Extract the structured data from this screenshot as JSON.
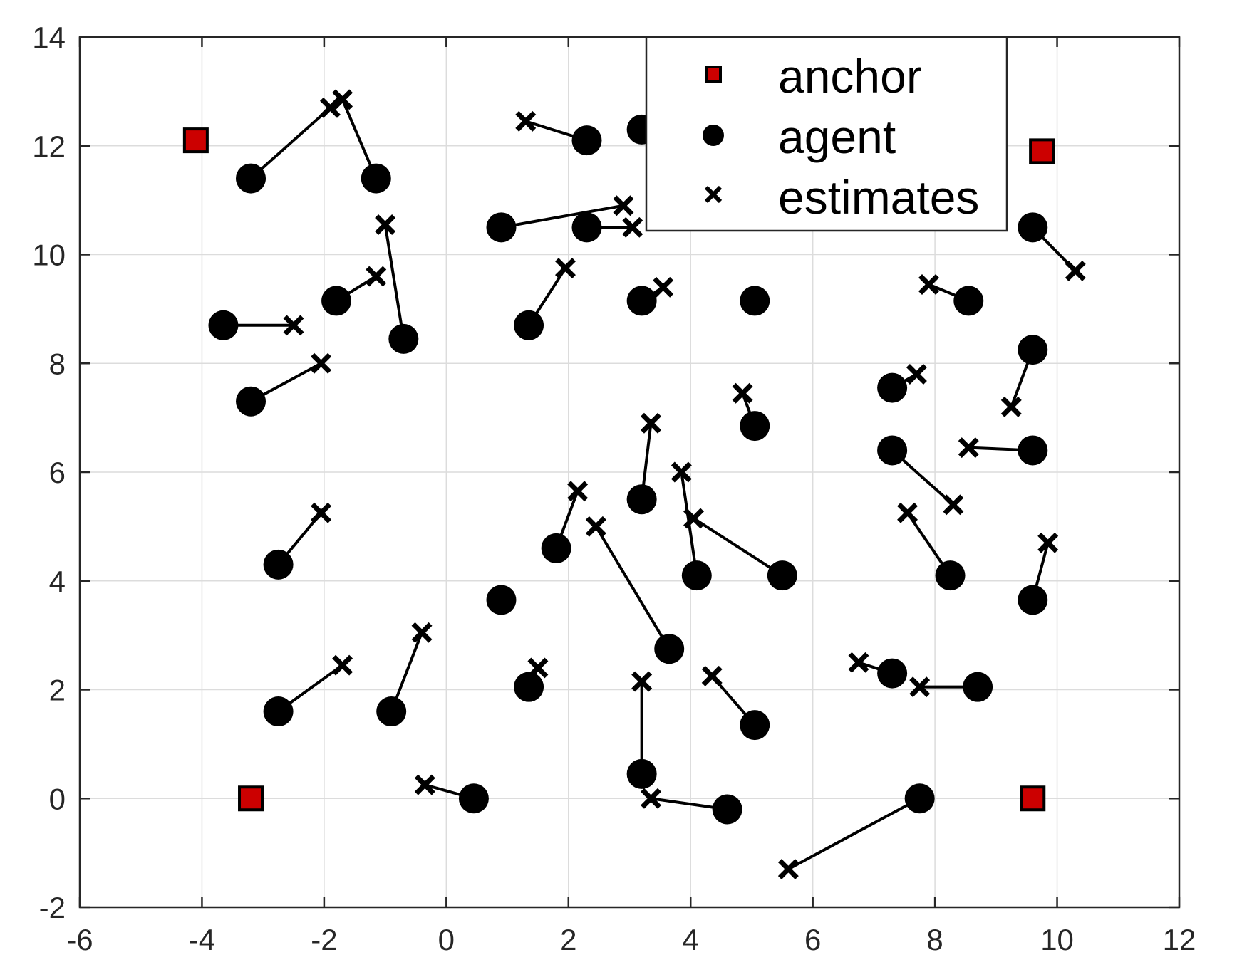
{
  "chart_data": {
    "type": "scatter",
    "title": "",
    "xlabel": "",
    "ylabel": "",
    "xlim": [
      -6,
      12
    ],
    "ylim": [
      -2,
      14
    ],
    "xticks": [
      "-6",
      "-4",
      "-2",
      "0",
      "2",
      "4",
      "6",
      "8",
      "10",
      "12"
    ],
    "yticks": [
      "-2",
      "0",
      "2",
      "4",
      "6",
      "8",
      "10",
      "12",
      "14"
    ],
    "grid": true,
    "legend": {
      "placement": "top-right (inside)",
      "entries": [
        "anchor",
        "agent",
        "estimates"
      ]
    },
    "colors": {
      "anchor": "#cc0000",
      "agent": "#000000",
      "estimates": "#000000"
    },
    "anchors": [
      {
        "x": -4.1,
        "y": 12.1
      },
      {
        "x": 9.75,
        "y": 11.9
      },
      {
        "x": -3.2,
        "y": 0.0
      },
      {
        "x": 9.6,
        "y": 0.0
      }
    ],
    "pairs": [
      {
        "agent": [
          -3.2,
          11.4
        ],
        "estimate": [
          -1.9,
          12.7
        ]
      },
      {
        "agent": [
          -1.15,
          11.4
        ],
        "estimate": [
          -1.7,
          12.85
        ]
      },
      {
        "agent": [
          2.3,
          12.1
        ],
        "estimate": [
          1.3,
          12.45
        ]
      },
      {
        "agent": [
          3.2,
          12.3
        ],
        "estimate": null
      },
      {
        "agent": [
          0.9,
          10.5
        ],
        "estimate": [
          2.9,
          10.9
        ]
      },
      {
        "agent": [
          2.3,
          10.5
        ],
        "estimate": [
          3.05,
          10.5
        ]
      },
      {
        "agent": [
          9.6,
          10.5
        ],
        "estimate": [
          10.3,
          9.7
        ]
      },
      {
        "agent": [
          -1.8,
          9.15
        ],
        "estimate": [
          -1.15,
          9.6
        ]
      },
      {
        "agent": [
          -0.7,
          8.45
        ],
        "estimate": [
          -1.0,
          10.55
        ]
      },
      {
        "agent": [
          -3.65,
          8.7
        ],
        "estimate": [
          -2.5,
          8.7
        ]
      },
      {
        "agent": [
          1.35,
          8.7
        ],
        "estimate": [
          1.95,
          9.75
        ]
      },
      {
        "agent": [
          3.2,
          9.15
        ],
        "estimate": [
          3.55,
          9.4
        ]
      },
      {
        "agent": [
          5.05,
          9.15
        ],
        "estimate": null
      },
      {
        "agent": [
          8.55,
          9.15
        ],
        "estimate": [
          7.9,
          9.45
        ]
      },
      {
        "agent": [
          -3.2,
          7.3
        ],
        "estimate": [
          -2.05,
          8.0
        ]
      },
      {
        "agent": [
          9.6,
          8.25
        ],
        "estimate": [
          9.25,
          7.2
        ]
      },
      {
        "agent": [
          7.3,
          7.55
        ],
        "estimate": [
          7.7,
          7.8
        ]
      },
      {
        "agent": [
          5.05,
          6.85
        ],
        "estimate": [
          4.85,
          7.45
        ]
      },
      {
        "agent": [
          3.2,
          5.5
        ],
        "estimate": [
          3.35,
          6.9
        ]
      },
      {
        "agent": [
          7.3,
          6.4
        ],
        "estimate": [
          8.3,
          5.4
        ]
      },
      {
        "agent": [
          9.6,
          6.4
        ],
        "estimate": [
          8.55,
          6.45
        ]
      },
      {
        "agent": [
          -2.75,
          4.3
        ],
        "estimate": [
          -2.05,
          5.25
        ]
      },
      {
        "agent": [
          1.8,
          4.6
        ],
        "estimate": [
          2.15,
          5.65
        ]
      },
      {
        "agent": [
          0.9,
          3.65
        ],
        "estimate": null
      },
      {
        "agent": [
          4.1,
          4.1
        ],
        "estimate": [
          3.85,
          6.0
        ]
      },
      {
        "agent": [
          5.5,
          4.1
        ],
        "estimate": [
          4.05,
          5.15
        ]
      },
      {
        "agent": [
          8.25,
          4.1
        ],
        "estimate": [
          7.55,
          5.25
        ]
      },
      {
        "agent": [
          9.6,
          3.65
        ],
        "estimate": [
          9.85,
          4.7
        ]
      },
      {
        "agent": [
          3.65,
          2.75
        ],
        "estimate": [
          2.45,
          5.0
        ]
      },
      {
        "agent": [
          -2.75,
          1.6
        ],
        "estimate": [
          -1.7,
          2.45
        ]
      },
      {
        "agent": [
          -0.9,
          1.6
        ],
        "estimate": [
          -0.4,
          3.05
        ]
      },
      {
        "agent": [
          1.35,
          2.05
        ],
        "estimate": [
          1.5,
          2.4
        ]
      },
      {
        "agent": [
          5.05,
          1.35
        ],
        "estimate": [
          4.35,
          2.25
        ]
      },
      {
        "agent": [
          7.3,
          2.3
        ],
        "estimate": [
          6.75,
          2.5
        ]
      },
      {
        "agent": [
          8.7,
          2.05
        ],
        "estimate": [
          7.75,
          2.05
        ]
      },
      {
        "agent": [
          3.2,
          0.45
        ],
        "estimate": [
          3.2,
          2.15
        ]
      },
      {
        "agent": [
          4.6,
          -0.2
        ],
        "estimate": [
          3.35,
          0.0
        ]
      },
      {
        "agent": [
          0.45,
          0.0
        ],
        "estimate": [
          -0.35,
          0.25
        ]
      },
      {
        "agent": [
          7.75,
          0.0
        ],
        "estimate": [
          5.6,
          -1.3
        ]
      }
    ]
  }
}
